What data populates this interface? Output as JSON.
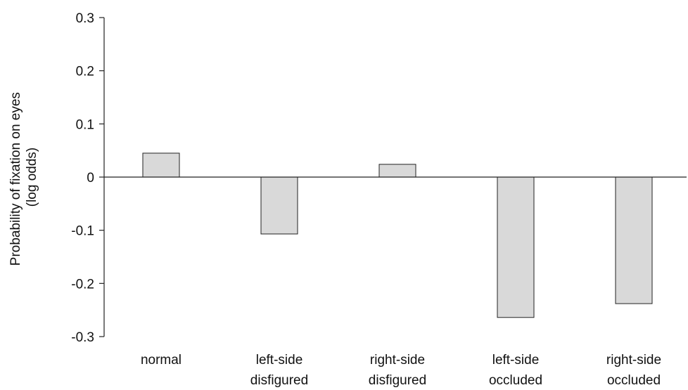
{
  "chart_data": {
    "type": "bar",
    "title": "",
    "xlabel": "",
    "ylabel": "Probability of fixation on eyes",
    "ylabel_line2": "(log odds)",
    "categories": [
      [
        "normal"
      ],
      [
        "left-side",
        "disfigured"
      ],
      [
        "right-side",
        "disfigured"
      ],
      [
        "left-side",
        "occluded"
      ],
      [
        "right-side",
        "occluded"
      ]
    ],
    "values": [
      0.045,
      -0.107,
      0.024,
      -0.264,
      -0.238
    ],
    "ylim": [
      -0.3,
      0.3
    ],
    "yticks": [
      0.3,
      0.2,
      0.1,
      0,
      -0.1,
      -0.2,
      -0.3
    ],
    "ytick_labels": [
      "0.3",
      "0.2",
      "0.1",
      "0",
      "-0.1",
      "-0.2",
      "-0.3"
    ],
    "grid": false,
    "legend": "none",
    "bar_color": "#d9d9d9",
    "bar_edge_color": "#222222"
  }
}
